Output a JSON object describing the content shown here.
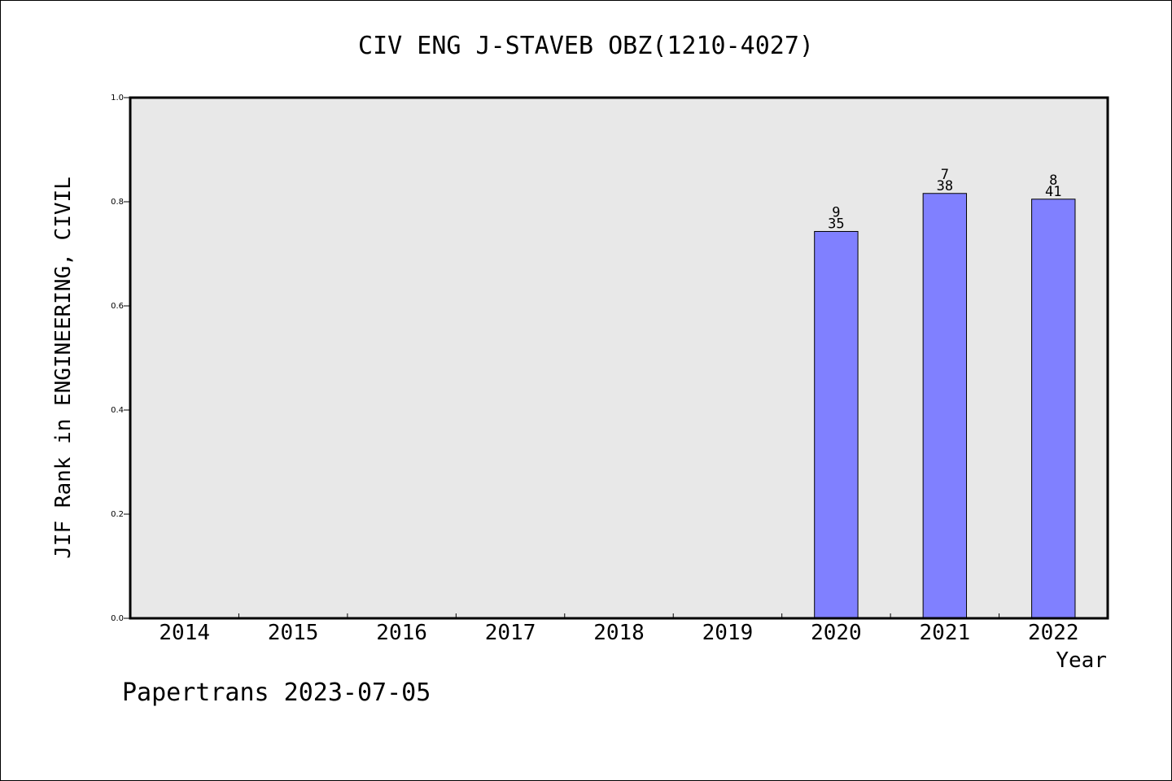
{
  "chart_data": {
    "type": "bar",
    "title": "CIV ENG J-STAVEB OBZ(1210-4027)",
    "xlabel": "Year",
    "ylabel": "JIF Rank in ENGINEERING, CIVIL",
    "ylim": [
      0,
      1.0
    ],
    "yticks": [
      "0.0",
      "0.2",
      "0.4",
      "0.6",
      "0.8",
      "1.0"
    ],
    "categories": [
      "2014",
      "2015",
      "2016",
      "2017",
      "2018",
      "2019",
      "2020",
      "2021",
      "2022"
    ],
    "values": [
      null,
      null,
      null,
      null,
      null,
      null,
      0.743,
      0.816,
      0.805
    ],
    "bar_labels_top": [
      "",
      "",
      "",
      "",
      "",
      "",
      "9",
      "7",
      "8"
    ],
    "bar_labels_bottom": [
      "",
      "",
      "",
      "",
      "",
      "",
      "35",
      "38",
      "41"
    ],
    "grid": false,
    "colors": {
      "bar": "#8080ff",
      "plot_bg": "#e8e8e8"
    }
  },
  "footer": {
    "text": "Papertrans 2023-07-05"
  }
}
